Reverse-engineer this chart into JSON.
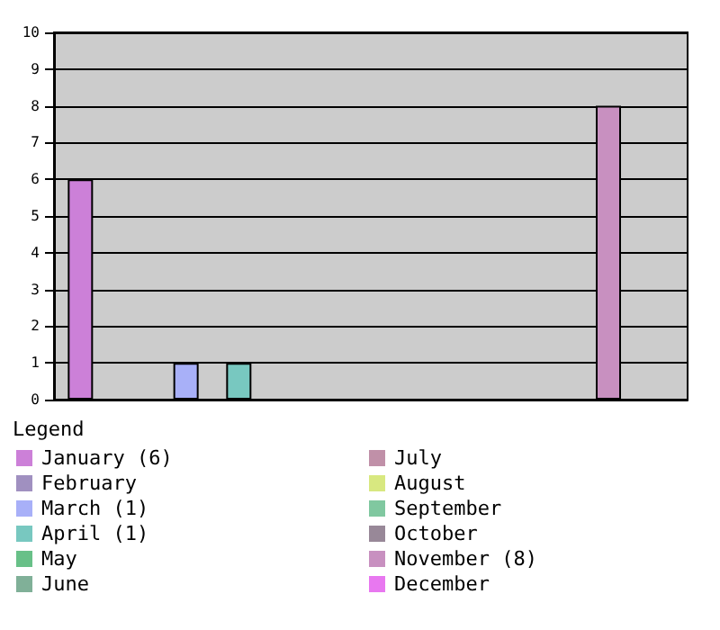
{
  "chart_data": {
    "type": "bar",
    "legend_title": "Legend",
    "categories": [
      null,
      null,
      null,
      null,
      null,
      null,
      null,
      null,
      null,
      null,
      null,
      null
    ],
    "stacked": true,
    "series": [
      {
        "name": "January (6)",
        "color": "#cc80d8",
        "values": [
          6,
          null,
          null,
          null,
          null,
          null,
          null,
          null,
          null,
          null,
          null,
          null
        ]
      },
      {
        "name": "February",
        "color": "#a090c0",
        "values": [
          null,
          0,
          null,
          null,
          null,
          null,
          null,
          null,
          null,
          null,
          null,
          null
        ]
      },
      {
        "name": "March (1)",
        "color": "#a8b0f8",
        "values": [
          null,
          null,
          1,
          null,
          null,
          null,
          null,
          null,
          null,
          null,
          null,
          null
        ]
      },
      {
        "name": "April (1)",
        "color": "#78c8c0",
        "values": [
          null,
          null,
          null,
          1,
          null,
          null,
          null,
          null,
          null,
          null,
          null,
          null
        ]
      },
      {
        "name": "May",
        "color": "#68c088",
        "values": [
          null,
          null,
          null,
          null,
          0,
          null,
          null,
          null,
          null,
          null,
          null,
          null
        ]
      },
      {
        "name": "June",
        "color": "#80b098",
        "values": [
          null,
          null,
          null,
          null,
          null,
          0,
          null,
          null,
          null,
          null,
          null,
          null
        ]
      },
      {
        "name": "July",
        "color": "#c090a8",
        "values": [
          null,
          null,
          null,
          null,
          null,
          null,
          0,
          null,
          null,
          null,
          null,
          null
        ]
      },
      {
        "name": "August",
        "color": "#d8e880",
        "values": [
          null,
          null,
          null,
          null,
          null,
          null,
          null,
          0,
          null,
          null,
          null,
          null
        ]
      },
      {
        "name": "September",
        "color": "#80c8a0",
        "values": [
          null,
          null,
          null,
          null,
          null,
          null,
          null,
          null,
          0,
          null,
          null,
          null
        ]
      },
      {
        "name": "October",
        "color": "#988898",
        "values": [
          null,
          null,
          null,
          null,
          null,
          null,
          null,
          null,
          null,
          0,
          null,
          null
        ]
      },
      {
        "name": "November (8)",
        "color": "#c890c0",
        "values": [
          null,
          null,
          null,
          null,
          null,
          null,
          null,
          null,
          null,
          null,
          8,
          null
        ]
      },
      {
        "name": "December",
        "color": "#e878f0",
        "values": [
          null,
          null,
          null,
          null,
          null,
          null,
          null,
          null,
          null,
          null,
          null,
          0
        ]
      }
    ],
    "ylim": [
      0,
      10
    ],
    "yticks": [
      0,
      1,
      2,
      3,
      4,
      5,
      6,
      7,
      8,
      9,
      10
    ],
    "grid": "y",
    "legend": "bottom"
  }
}
